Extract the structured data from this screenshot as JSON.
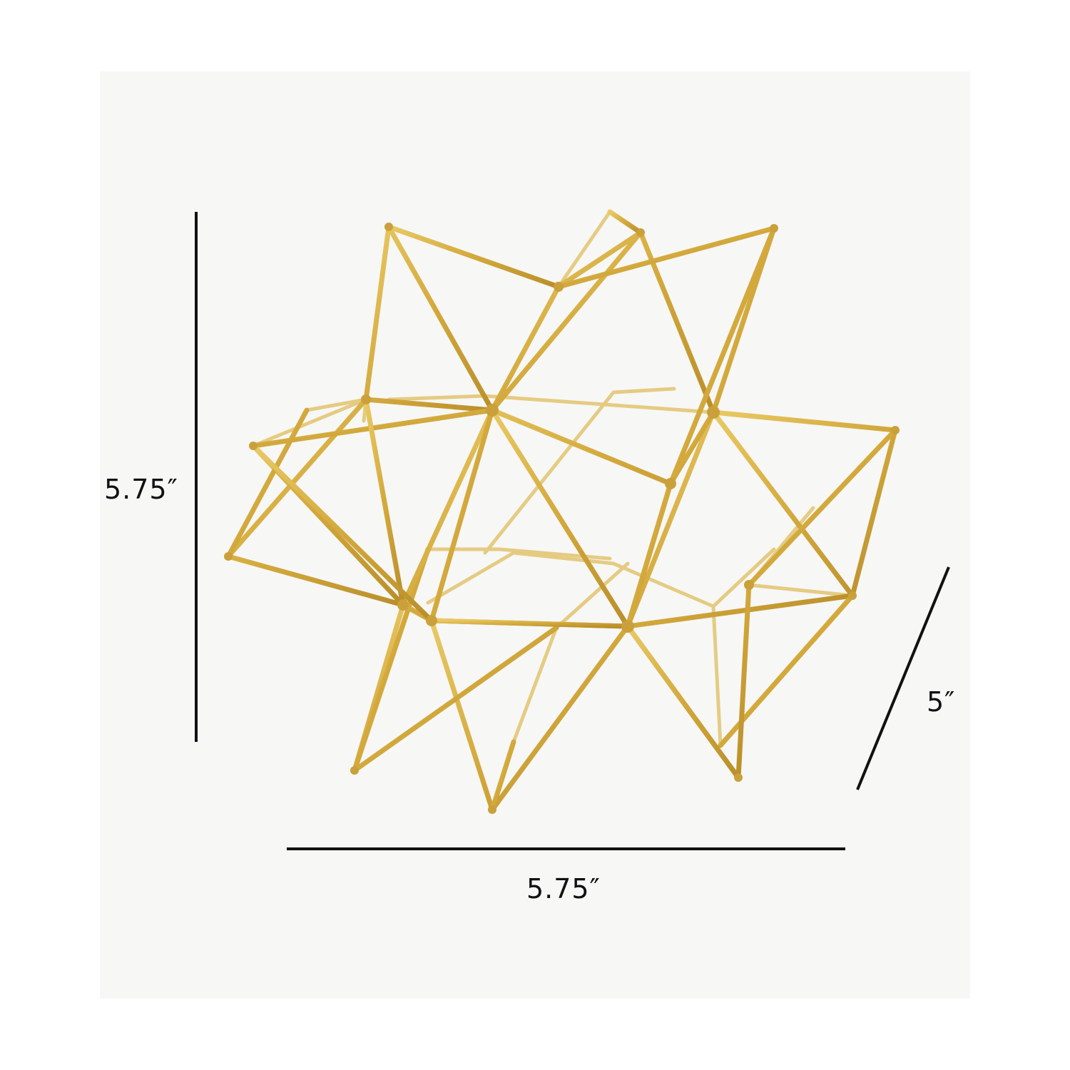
{
  "dimensions": {
    "height_label": "5.75″",
    "width_label": "5.75″",
    "depth_label": "5″"
  },
  "colors": {
    "background": "#ffffff",
    "backdrop": "#f7f7f6",
    "dimension_lines": "#111111",
    "wire_gold": "#d8b44a"
  },
  "object": {
    "icon": "gold-wire-star-sculpture"
  }
}
